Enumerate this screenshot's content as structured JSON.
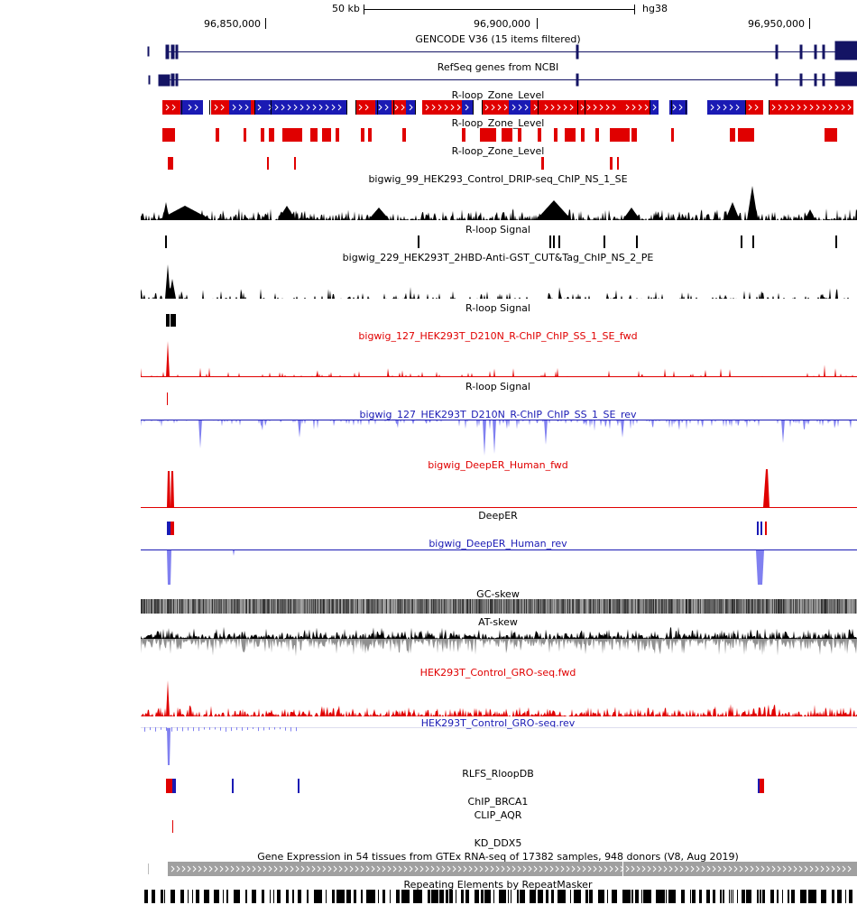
{
  "header": {
    "scale_label": "50 kb",
    "assembly": "hg38",
    "positions": [
      "96,850,000",
      "96,900,000",
      "96,950,000"
    ]
  },
  "tracks": [
    {
      "id": "gencode",
      "label": "GENCODE V36 (15 items filtered)"
    },
    {
      "id": "refseq",
      "label": "RefSeq genes from NCBI"
    },
    {
      "id": "rloop_zone_1",
      "label": "R-loop_Zone_Level"
    },
    {
      "id": "rloop_zone_2",
      "label": "R-loop_Zone_Level"
    },
    {
      "id": "rloop_zone_3",
      "label": "R-loop_Zone_Level"
    },
    {
      "id": "drip",
      "label": "bigwig_99_HEK293_Control_DRIP-seq_ChIP_NS_1_SE"
    },
    {
      "id": "rloop_signal_1",
      "label": "R-loop Signal"
    },
    {
      "id": "cuttag",
      "label": "bigwig_229_HEK293T_2HBD-Anti-GST_CUT&Tag_ChIP_NS_2_PE"
    },
    {
      "id": "rloop_signal_2",
      "label": "R-loop Signal"
    },
    {
      "id": "rchip_fwd",
      "label": "bigwig_127_HEK293T_D210N_R-ChIP_ChIP_SS_1_SE_fwd"
    },
    {
      "id": "rloop_signal_3",
      "label": "R-loop Signal"
    },
    {
      "id": "rchip_rev",
      "label": "bigwig_127_HEK293T_D210N_R-ChIP_ChIP_SS_1_SE_rev"
    },
    {
      "id": "deeper_fwd",
      "label": "bigwig_DeepER_Human_fwd"
    },
    {
      "id": "deeper",
      "label": "DeepER"
    },
    {
      "id": "deeper_rev",
      "label": "bigwig_DeepER_Human_rev"
    },
    {
      "id": "gc_skew",
      "label": "GC-skew"
    },
    {
      "id": "at_skew",
      "label": "AT-skew"
    },
    {
      "id": "gro_fwd",
      "label": "HEK293T_Control_GRO-seq.fwd"
    },
    {
      "id": "gro_rev",
      "label": "HEK293T_Control_GRO-seq.rev"
    },
    {
      "id": "rlfs",
      "label": "RLFS_RloopDB"
    },
    {
      "id": "chip_brca1",
      "label": "ChIP_BRCA1"
    },
    {
      "id": "clip_aqr",
      "label": "CLIP_AQR"
    },
    {
      "id": "kd_ddx5",
      "label": "KD_DDX5"
    },
    {
      "id": "gtex",
      "label": "Gene Expression in 54 tissues from GTEx RNA-seq of 17382 samples, 948 donors (V8, Aug 2019)"
    },
    {
      "id": "rmsk",
      "label": "Repeating Elements by RepeatMasker"
    }
  ],
  "colors": {
    "red": "#e00000",
    "blue": "#1a1ab4",
    "navy": "#141464",
    "light_blue": "#8080f0",
    "gray": "#909090",
    "black": "#000000"
  }
}
